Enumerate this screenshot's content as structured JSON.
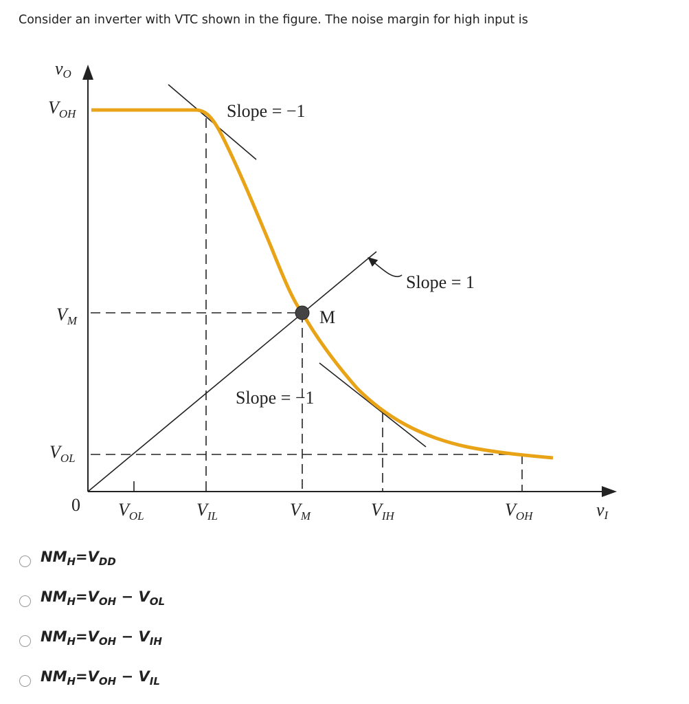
{
  "question": "Consider an inverter with VTC shown in the figure. The noise margin for high input is",
  "figure": {
    "y_axis_label": {
      "main": "v",
      "sub": "O"
    },
    "x_axis_label": {
      "main": "v",
      "sub": "I"
    },
    "origin": "0",
    "y_ticks": [
      {
        "main": "V",
        "sub": "OH"
      },
      {
        "main": "V",
        "sub": "M"
      },
      {
        "main": "V",
        "sub": "OL"
      }
    ],
    "x_ticks": [
      {
        "main": "V",
        "sub": "OL"
      },
      {
        "main": "V",
        "sub": "IL"
      },
      {
        "main": "V",
        "sub": "M"
      },
      {
        "main": "V",
        "sub": "IH"
      },
      {
        "main": "V",
        "sub": "OH"
      }
    ],
    "annotations": {
      "slope_top": "Slope = −1",
      "slope_unity": "Slope = 1",
      "slope_bottom": "Slope = −1",
      "point_m": "M"
    },
    "curve_color": "#e8a317"
  },
  "options": [
    {
      "lhs": "NM",
      "lhs_sub": "H",
      "rhs1": "V",
      "rhs1_sub": "DD",
      "minus": "",
      "rhs2": "",
      "rhs2_sub": ""
    },
    {
      "lhs": "NM",
      "lhs_sub": "H",
      "rhs1": "V",
      "rhs1_sub": "OH",
      "minus": "−",
      "rhs2": "V",
      "rhs2_sub": "OL"
    },
    {
      "lhs": "NM",
      "lhs_sub": "H",
      "rhs1": "V",
      "rhs1_sub": "OH",
      "minus": "−",
      "rhs2": "V",
      "rhs2_sub": "IH"
    },
    {
      "lhs": "NM",
      "lhs_sub": "H",
      "rhs1": "V",
      "rhs1_sub": "OH",
      "minus": "−",
      "rhs2": "V",
      "rhs2_sub": "IL"
    }
  ],
  "equals": "="
}
